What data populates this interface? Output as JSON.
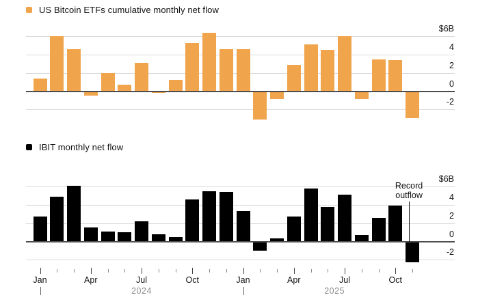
{
  "page": {
    "background": "#ffffff"
  },
  "colors": {
    "etf_bar_orange": "#F0A44B",
    "ibit_bar_black": "#000000",
    "gridline": "#d9d9d9",
    "zero_line": "#4d4d4d",
    "year_label_gray": "#8c8c8c",
    "text": "#111111"
  },
  "x_axis": {
    "month_tick_count": 23,
    "quarter_tick_indices": [
      0,
      3,
      6,
      9,
      12,
      15,
      18,
      21
    ],
    "quarter_labels": [
      "Jan",
      "Apr",
      "Jul",
      "Oct",
      "Jan",
      "Apr",
      "Jul",
      "Oct"
    ],
    "year_separator_indices": [
      0,
      12
    ],
    "years": [
      {
        "label": "2024",
        "center_index": 6
      },
      {
        "label": "2025",
        "center_index": 17.4
      }
    ]
  },
  "chart_data": [
    {
      "type": "bar",
      "title": "US Bitcoin ETFs cumulative monthly net flow",
      "bar_color": "#F0A44B",
      "categories": [
        "Jan 2024",
        "Feb 2024",
        "Mar 2024",
        "Apr 2024",
        "May 2024",
        "Jun 2024",
        "Jul 2024",
        "Aug 2024",
        "Sep 2024",
        "Oct 2024",
        "Nov 2024",
        "Dec 2024",
        "Jan 2025",
        "Feb 2025",
        "Mar 2025",
        "Apr 2025",
        "May 2025",
        "Jun 2025",
        "Jul 2025",
        "Aug 2025",
        "Sep 2025",
        "Oct 2025",
        "Nov 2025"
      ],
      "values": [
        1.4,
        6.0,
        4.6,
        -0.4,
        2.0,
        0.7,
        3.1,
        -0.1,
        1.2,
        5.3,
        6.4,
        4.6,
        4.6,
        -3.0,
        -0.8,
        2.9,
        5.1,
        4.5,
        6.0,
        -0.8,
        3.5,
        3.4,
        -2.9
      ],
      "unit": "billion USD",
      "yticks": [
        {
          "label": "$6B",
          "value": 6
        },
        {
          "label": "4",
          "value": 4
        },
        {
          "label": "2",
          "value": 2
        },
        {
          "label": "0",
          "value": 0
        },
        {
          "label": "-2",
          "value": -2
        }
      ],
      "ylim": [
        -3.5,
        6.9
      ],
      "grid": true,
      "axis_side": "right",
      "legend_position": "top-left"
    },
    {
      "type": "bar",
      "title": "IBIT monthly net flow",
      "bar_color": "#000000",
      "categories": [
        "Jan 2024",
        "Feb 2024",
        "Mar 2024",
        "Apr 2024",
        "May 2024",
        "Jun 2024",
        "Jul 2024",
        "Aug 2024",
        "Sep 2024",
        "Oct 2024",
        "Nov 2024",
        "Dec 2024",
        "Jan 2025",
        "Feb 2025",
        "Mar 2025",
        "Apr 2025",
        "May 2025",
        "Jun 2025",
        "Jul 2025",
        "Aug 2025",
        "Sep 2025",
        "Oct 2025",
        "Nov 2025"
      ],
      "values": [
        2.7,
        4.9,
        6.1,
        1.5,
        1.1,
        1.0,
        2.2,
        0.8,
        0.5,
        4.6,
        5.5,
        5.4,
        3.3,
        -0.9,
        0.3,
        2.7,
        5.8,
        3.8,
        5.1,
        0.7,
        2.6,
        3.9,
        -2.2
      ],
      "unit": "billion USD",
      "yticks": [
        {
          "label": "$6B",
          "value": 6
        },
        {
          "label": "4",
          "value": 4
        },
        {
          "label": "2",
          "value": 2
        },
        {
          "label": "0",
          "value": 0
        },
        {
          "label": "-2",
          "value": -2
        }
      ],
      "ylim": [
        -2.9,
        6.9
      ],
      "grid": true,
      "axis_side": "right",
      "legend_position": "top-left",
      "annotation": {
        "lines": [
          "Record",
          "outflow"
        ],
        "points_to_month": "Nov 2025",
        "x_index": 21.8
      }
    }
  ]
}
